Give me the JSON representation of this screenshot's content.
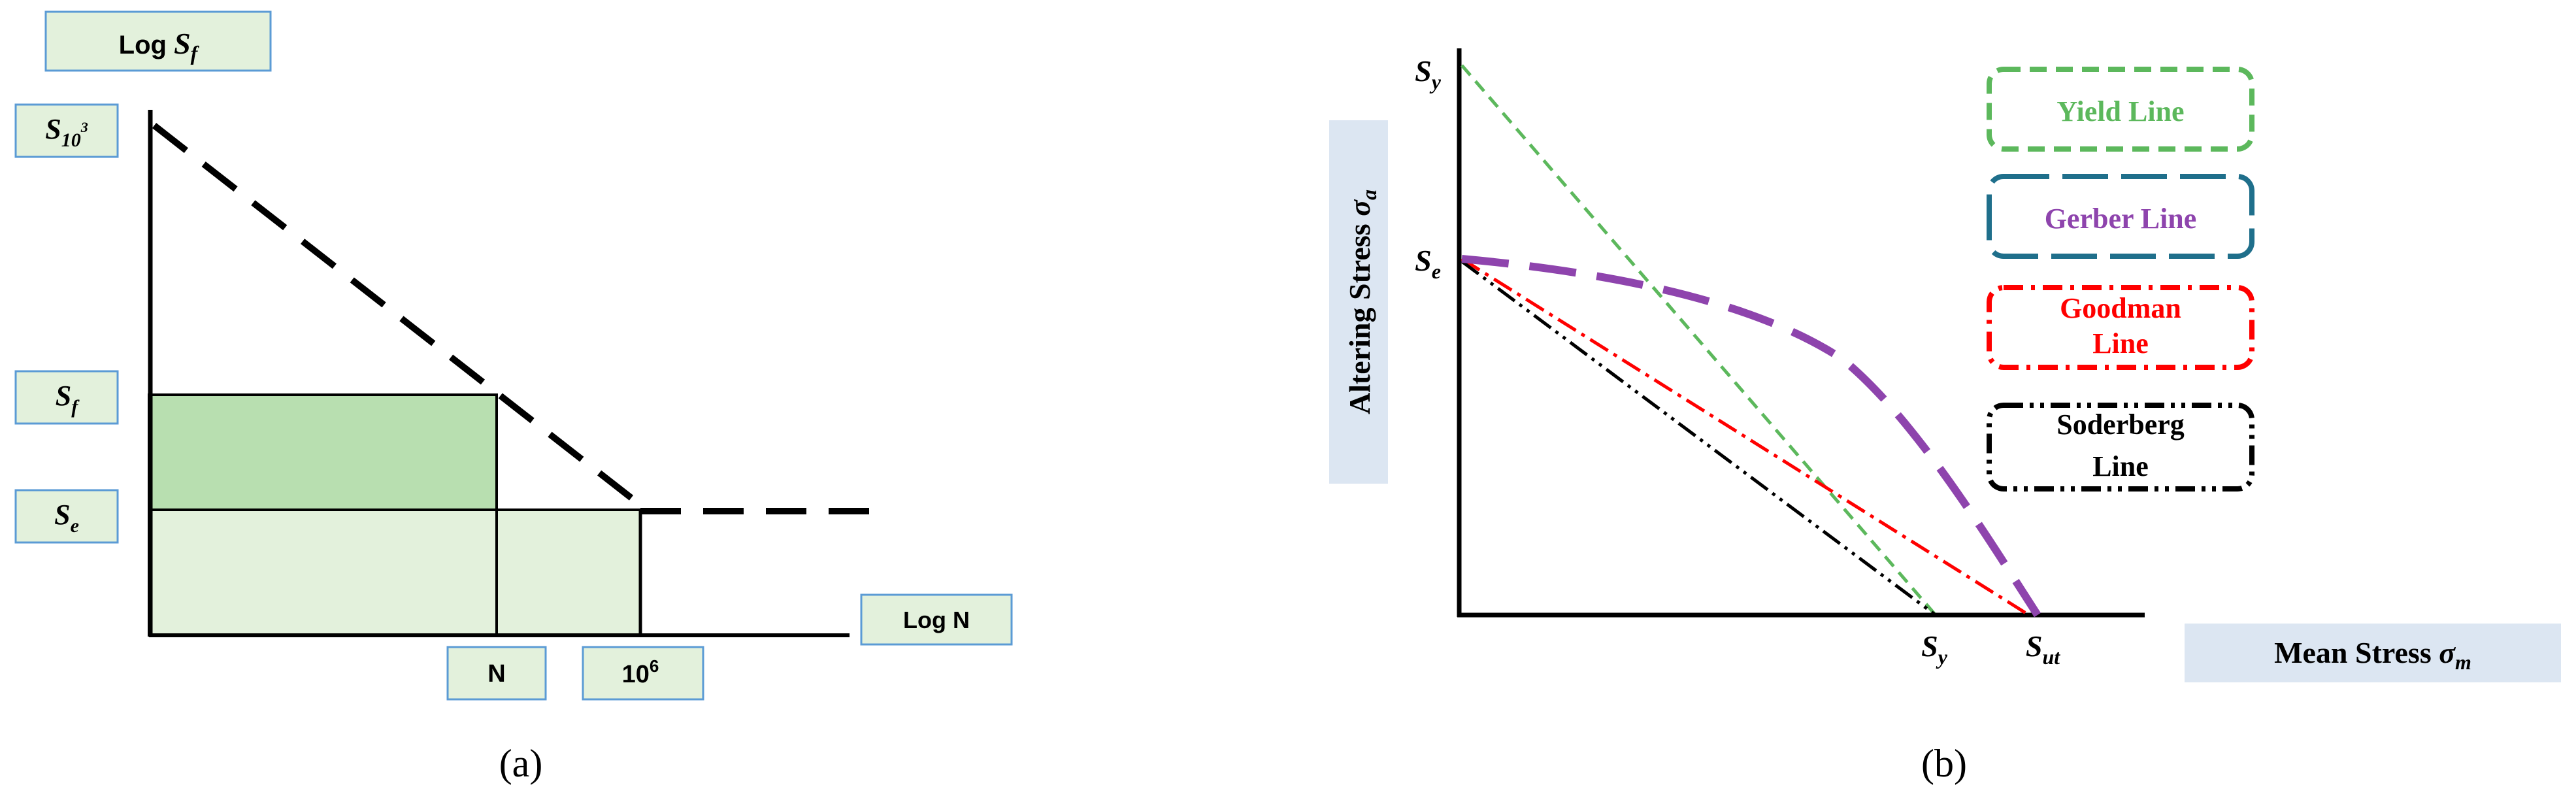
{
  "panel_a": {
    "caption": "(a)",
    "y_label_prefix": "Log ",
    "y_label_var": "S",
    "y_label_sub": "f",
    "x_label": "Log N",
    "s103": {
      "base": "S",
      "sub": "10",
      "sup": "3"
    },
    "sf": {
      "base": "S",
      "sub": "f"
    },
    "se": {
      "base": "S",
      "sub": "e"
    },
    "n_tick": "N",
    "tick_1e6": {
      "base": "10",
      "sup": "6"
    }
  },
  "panel_b": {
    "caption": "(b)",
    "y_axis_title": "Altering Stress",
    "y_axis_symbol": "σ",
    "y_axis_symbol_sub": "a",
    "x_axis_title": "Mean Stress",
    "x_axis_symbol": "σ",
    "x_axis_symbol_sub": "m",
    "sy_top": {
      "base": "S",
      "sub": "y"
    },
    "se_left": {
      "base": "S",
      "sub": "e"
    },
    "sy_bottom": {
      "base": "S",
      "sub": "y"
    },
    "sut_bottom": {
      "base": "S",
      "sub": "ut"
    },
    "legend": [
      {
        "lines": [
          "Yield Line"
        ],
        "color": "#5cb85c",
        "style": "short-dash"
      },
      {
        "lines": [
          "Gerber Line"
        ],
        "color": "#1f6f8b",
        "text_color": "#8e44ad",
        "style": "long-dash"
      },
      {
        "lines": [
          "Goodman",
          "Line"
        ],
        "color": "#ff0000",
        "style": "dash-dot"
      },
      {
        "lines": [
          "Soderberg",
          "Line"
        ],
        "color": "#000000",
        "style": "dash-dot-dot"
      }
    ]
  },
  "colors": {
    "label_box_fill": "#e3f1dc",
    "label_box_stroke": "#5b9bd5",
    "light_green": "#e3f1dc",
    "dark_green": "#b8dfb0",
    "yield": "#5cb85c",
    "gerber": "#8e44ad",
    "goodman": "#ff0000",
    "soderberg": "#000000",
    "axis_box_fill": "#dce6f2"
  }
}
